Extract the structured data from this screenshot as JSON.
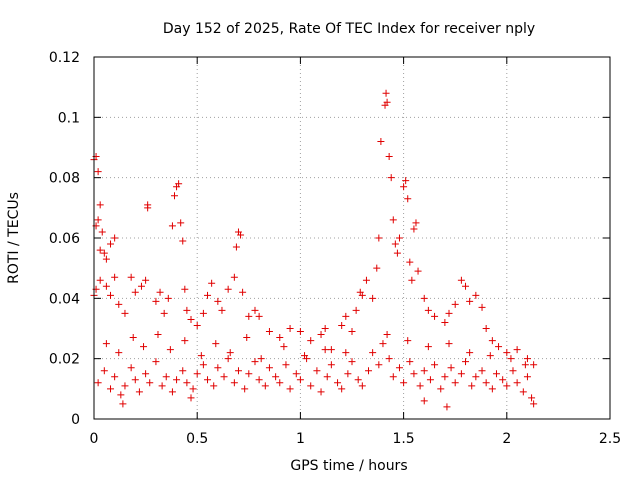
{
  "chart_data": {
    "type": "scatter",
    "title": "Day 152 of 2025, Rate Of TEC Index for receiver nply",
    "xlabel": "GPS time / hours",
    "ylabel": "ROTI / TECUs",
    "xlim": [
      0,
      2.5
    ],
    "ylim": [
      0,
      0.12
    ],
    "xticks": [
      0,
      0.5,
      1,
      1.5,
      2,
      2.5
    ],
    "xtick_labels": [
      "0",
      "0.5",
      "1",
      "1.5",
      "2",
      "2.5"
    ],
    "yticks": [
      0,
      0.02,
      0.04,
      0.06,
      0.08,
      0.1,
      0.12
    ],
    "ytick_labels": [
      "0",
      "0.02",
      "0.04",
      "0.06",
      "0.08",
      "0.1",
      "0.12"
    ],
    "grid": true,
    "marker": "plus",
    "color": "#e00000",
    "x_range_of_points": [
      0,
      2.13
    ],
    "series": [
      {
        "name": "ROTI",
        "points": [
          [
            0.0,
            0.086
          ],
          [
            0.01,
            0.087
          ],
          [
            0.02,
            0.082
          ],
          [
            0.01,
            0.064
          ],
          [
            0.02,
            0.066
          ],
          [
            0.03,
            0.071
          ],
          [
            0.04,
            0.062
          ],
          [
            0.03,
            0.056
          ],
          [
            0.05,
            0.055
          ],
          [
            0.06,
            0.053
          ],
          [
            0.08,
            0.058
          ],
          [
            0.1,
            0.06
          ],
          [
            0.0,
            0.041
          ],
          [
            0.01,
            0.043
          ],
          [
            0.03,
            0.046
          ],
          [
            0.06,
            0.044
          ],
          [
            0.08,
            0.041
          ],
          [
            0.1,
            0.047
          ],
          [
            0.12,
            0.038
          ],
          [
            0.15,
            0.035
          ],
          [
            0.18,
            0.047
          ],
          [
            0.2,
            0.042
          ],
          [
            0.23,
            0.044
          ],
          [
            0.25,
            0.046
          ],
          [
            0.26,
            0.07
          ],
          [
            0.26,
            0.071
          ],
          [
            0.3,
            0.039
          ],
          [
            0.32,
            0.042
          ],
          [
            0.34,
            0.035
          ],
          [
            0.36,
            0.04
          ],
          [
            0.38,
            0.064
          ],
          [
            0.39,
            0.074
          ],
          [
            0.4,
            0.077
          ],
          [
            0.41,
            0.078
          ],
          [
            0.42,
            0.065
          ],
          [
            0.43,
            0.059
          ],
          [
            0.44,
            0.043
          ],
          [
            0.45,
            0.036
          ],
          [
            0.47,
            0.033
          ],
          [
            0.5,
            0.031
          ],
          [
            0.53,
            0.035
          ],
          [
            0.55,
            0.041
          ],
          [
            0.57,
            0.045
          ],
          [
            0.6,
            0.039
          ],
          [
            0.62,
            0.036
          ],
          [
            0.65,
            0.043
          ],
          [
            0.68,
            0.047
          ],
          [
            0.69,
            0.057
          ],
          [
            0.7,
            0.062
          ],
          [
            0.71,
            0.061
          ],
          [
            0.72,
            0.042
          ],
          [
            0.75,
            0.034
          ],
          [
            0.78,
            0.036
          ],
          [
            0.8,
            0.034
          ],
          [
            0.85,
            0.029
          ],
          [
            0.9,
            0.027
          ],
          [
            0.95,
            0.03
          ],
          [
            1.0,
            0.029
          ],
          [
            1.05,
            0.026
          ],
          [
            1.1,
            0.028
          ],
          [
            1.12,
            0.03
          ],
          [
            1.15,
            0.023
          ],
          [
            1.2,
            0.031
          ],
          [
            1.22,
            0.034
          ],
          [
            1.25,
            0.029
          ],
          [
            1.27,
            0.036
          ],
          [
            1.29,
            0.042
          ],
          [
            1.3,
            0.041
          ],
          [
            1.32,
            0.046
          ],
          [
            1.35,
            0.04
          ],
          [
            1.37,
            0.05
          ],
          [
            1.38,
            0.06
          ],
          [
            1.39,
            0.092
          ],
          [
            1.41,
            0.104
          ],
          [
            1.415,
            0.108
          ],
          [
            1.42,
            0.105
          ],
          [
            1.43,
            0.087
          ],
          [
            1.44,
            0.08
          ],
          [
            1.45,
            0.066
          ],
          [
            1.46,
            0.058
          ],
          [
            1.47,
            0.055
          ],
          [
            1.48,
            0.06
          ],
          [
            1.5,
            0.077
          ],
          [
            1.51,
            0.079
          ],
          [
            1.52,
            0.073
          ],
          [
            1.53,
            0.052
          ],
          [
            1.54,
            0.046
          ],
          [
            1.55,
            0.063
          ],
          [
            1.56,
            0.065
          ],
          [
            1.57,
            0.049
          ],
          [
            1.6,
            0.04
          ],
          [
            1.62,
            0.036
          ],
          [
            1.65,
            0.034
          ],
          [
            1.7,
            0.032
          ],
          [
            1.72,
            0.035
          ],
          [
            1.75,
            0.038
          ],
          [
            1.78,
            0.046
          ],
          [
            1.8,
            0.044
          ],
          [
            1.82,
            0.039
          ],
          [
            1.85,
            0.041
          ],
          [
            1.88,
            0.037
          ],
          [
            1.9,
            0.03
          ],
          [
            1.93,
            0.026
          ],
          [
            1.96,
            0.024
          ],
          [
            2.0,
            0.022
          ],
          [
            2.05,
            0.023
          ],
          [
            2.1,
            0.02
          ],
          [
            2.13,
            0.018
          ],
          [
            0.02,
            0.012
          ],
          [
            0.05,
            0.016
          ],
          [
            0.08,
            0.01
          ],
          [
            0.1,
            0.014
          ],
          [
            0.13,
            0.008
          ],
          [
            0.15,
            0.011
          ],
          [
            0.18,
            0.017
          ],
          [
            0.2,
            0.013
          ],
          [
            0.22,
            0.009
          ],
          [
            0.25,
            0.015
          ],
          [
            0.27,
            0.012
          ],
          [
            0.3,
            0.019
          ],
          [
            0.33,
            0.011
          ],
          [
            0.35,
            0.014
          ],
          [
            0.38,
            0.009
          ],
          [
            0.4,
            0.013
          ],
          [
            0.43,
            0.016
          ],
          [
            0.45,
            0.012
          ],
          [
            0.48,
            0.01
          ],
          [
            0.5,
            0.015
          ],
          [
            0.53,
            0.018
          ],
          [
            0.55,
            0.013
          ],
          [
            0.58,
            0.011
          ],
          [
            0.6,
            0.017
          ],
          [
            0.63,
            0.014
          ],
          [
            0.65,
            0.02
          ],
          [
            0.68,
            0.012
          ],
          [
            0.7,
            0.016
          ],
          [
            0.73,
            0.01
          ],
          [
            0.75,
            0.015
          ],
          [
            0.78,
            0.019
          ],
          [
            0.8,
            0.013
          ],
          [
            0.83,
            0.011
          ],
          [
            0.85,
            0.017
          ],
          [
            0.88,
            0.014
          ],
          [
            0.9,
            0.012
          ],
          [
            0.93,
            0.018
          ],
          [
            0.95,
            0.01
          ],
          [
            0.98,
            0.015
          ],
          [
            1.0,
            0.013
          ],
          [
            1.03,
            0.02
          ],
          [
            1.05,
            0.011
          ],
          [
            1.08,
            0.016
          ],
          [
            1.1,
            0.009
          ],
          [
            1.13,
            0.014
          ],
          [
            1.15,
            0.018
          ],
          [
            1.18,
            0.012
          ],
          [
            1.2,
            0.01
          ],
          [
            1.23,
            0.015
          ],
          [
            1.25,
            0.019
          ],
          [
            1.28,
            0.013
          ],
          [
            1.3,
            0.011
          ],
          [
            1.33,
            0.016
          ],
          [
            1.35,
            0.022
          ],
          [
            1.38,
            0.018
          ],
          [
            1.4,
            0.025
          ],
          [
            1.43,
            0.02
          ],
          [
            1.45,
            0.014
          ],
          [
            1.48,
            0.017
          ],
          [
            1.5,
            0.012
          ],
          [
            1.53,
            0.019
          ],
          [
            1.55,
            0.015
          ],
          [
            1.58,
            0.011
          ],
          [
            1.6,
            0.016
          ],
          [
            1.63,
            0.013
          ],
          [
            1.65,
            0.018
          ],
          [
            1.68,
            0.01
          ],
          [
            1.7,
            0.014
          ],
          [
            1.73,
            0.017
          ],
          [
            1.75,
            0.012
          ],
          [
            1.78,
            0.015
          ],
          [
            1.8,
            0.019
          ],
          [
            1.83,
            0.011
          ],
          [
            1.85,
            0.014
          ],
          [
            1.88,
            0.016
          ],
          [
            1.9,
            0.012
          ],
          [
            1.93,
            0.01
          ],
          [
            1.95,
            0.015
          ],
          [
            1.98,
            0.013
          ],
          [
            2.0,
            0.011
          ],
          [
            2.03,
            0.016
          ],
          [
            2.05,
            0.012
          ],
          [
            2.08,
            0.009
          ],
          [
            2.1,
            0.014
          ],
          [
            2.12,
            0.007
          ],
          [
            2.13,
            0.005
          ],
          [
            0.14,
            0.005
          ],
          [
            0.47,
            0.007
          ],
          [
            1.6,
            0.006
          ],
          [
            1.71,
            0.004
          ],
          [
            0.06,
            0.025
          ],
          [
            0.12,
            0.022
          ],
          [
            0.19,
            0.027
          ],
          [
            0.24,
            0.024
          ],
          [
            0.31,
            0.028
          ],
          [
            0.37,
            0.023
          ],
          [
            0.44,
            0.026
          ],
          [
            0.52,
            0.021
          ],
          [
            0.59,
            0.025
          ],
          [
            0.66,
            0.022
          ],
          [
            0.74,
            0.027
          ],
          [
            0.81,
            0.02
          ],
          [
            0.92,
            0.024
          ],
          [
            1.02,
            0.021
          ],
          [
            1.12,
            0.023
          ],
          [
            1.22,
            0.022
          ],
          [
            1.42,
            0.028
          ],
          [
            1.52,
            0.026
          ],
          [
            1.62,
            0.024
          ],
          [
            1.72,
            0.025
          ],
          [
            1.82,
            0.022
          ],
          [
            1.92,
            0.021
          ],
          [
            2.02,
            0.02
          ],
          [
            2.09,
            0.018
          ]
        ]
      }
    ]
  }
}
